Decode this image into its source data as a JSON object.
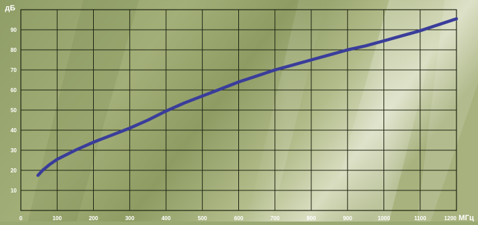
{
  "chart_data": {
    "type": "line",
    "title": "",
    "xlabel": "МГц",
    "ylabel": "дБ",
    "xlim": [
      0,
      1200
    ],
    "ylim": [
      0,
      100
    ],
    "x_ticks": [
      0,
      100,
      200,
      300,
      400,
      500,
      600,
      700,
      800,
      900,
      1000,
      1100,
      1200
    ],
    "y_ticks": [
      10,
      20,
      30,
      40,
      50,
      60,
      70,
      80,
      90
    ],
    "grid": true,
    "legend": "none",
    "series": [
      {
        "color": "#3a3d9a",
        "x": [
          47,
          60,
          80,
          100,
          150,
          200,
          250,
          300,
          350,
          400,
          450,
          500,
          550,
          600,
          650,
          700,
          750,
          800,
          850,
          900,
          950,
          1000,
          1050,
          1100,
          1150,
          1200
        ],
        "y": [
          17.5,
          20,
          23,
          25.5,
          30,
          34,
          37.5,
          41,
          45,
          49.5,
          53.5,
          57,
          60.5,
          64,
          67,
          70,
          72.5,
          75,
          77.5,
          80,
          82,
          84.5,
          87,
          89.5,
          92.5,
          95.5
        ]
      }
    ]
  },
  "colors": {
    "background": "#9aa872",
    "grid": "#1e2412",
    "line": "#3a3d9a",
    "text": "#ffffff"
  }
}
